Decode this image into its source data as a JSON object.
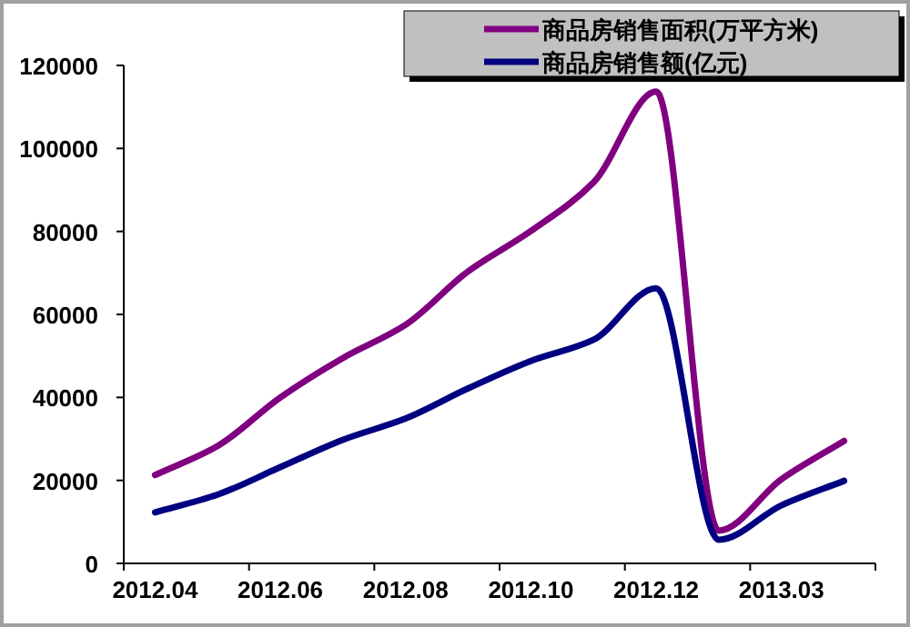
{
  "chart_data": {
    "type": "line",
    "categories": [
      "2012.04",
      null,
      "2012.06",
      null,
      "2012.08",
      null,
      "2012.10",
      null,
      "2012.12",
      null,
      "2013.03",
      null
    ],
    "series": [
      {
        "name": "商品房销售面积(万平方米)",
        "color": "#800080",
        "values": [
          21300,
          28300,
          40000,
          49500,
          57500,
          70400,
          80100,
          91800,
          113700,
          7900,
          20300,
          29500
        ]
      },
      {
        "name": "商品房销售额(亿元)",
        "color": "#000080",
        "values": [
          12300,
          16600,
          23200,
          29800,
          34900,
          42200,
          48800,
          53900,
          66300,
          5700,
          14000,
          19900
        ]
      }
    ],
    "ylim": [
      0,
      120000
    ],
    "yticks": [
      0,
      20000,
      40000,
      60000,
      80000,
      100000,
      120000
    ],
    "legend": "top right",
    "marker": "none"
  }
}
